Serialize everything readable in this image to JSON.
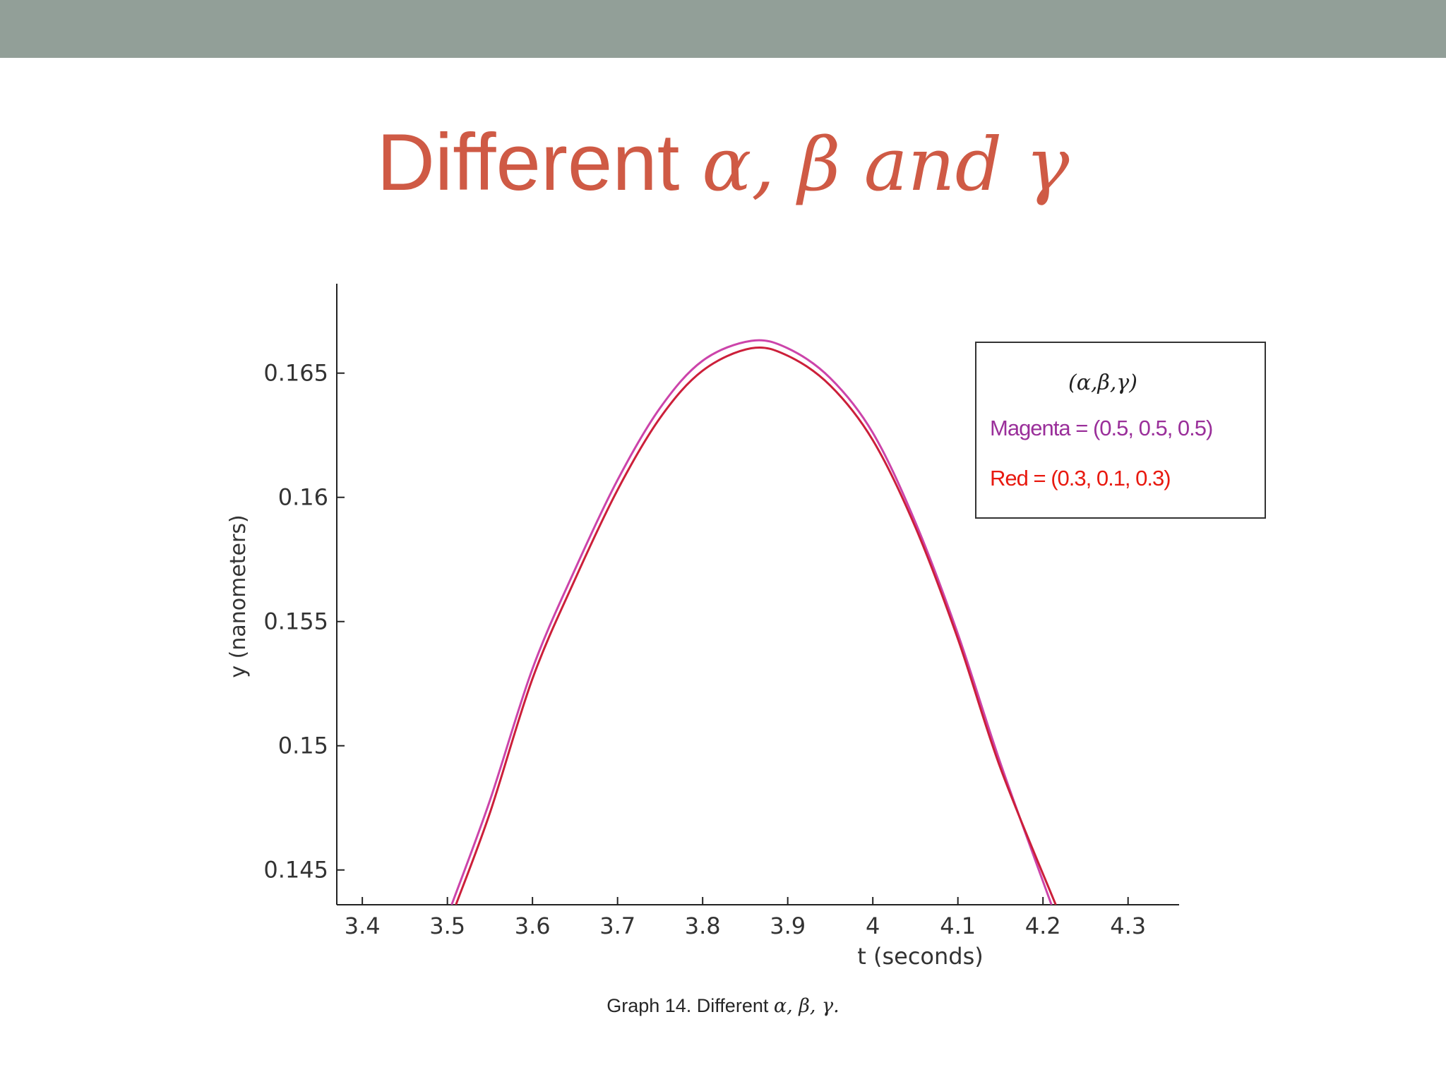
{
  "slide": {
    "title_text": "Different",
    "title_math": "α, β and γ",
    "caption_text": "Graph 14. Different",
    "caption_math": "α, β, γ."
  },
  "colors": {
    "top_bar": "#929f98",
    "title": "#cf5a45",
    "magenta_series": "#cc44aa",
    "red_series": "#cc1f3a",
    "legend_magenta_text": "#9a2f9a",
    "legend_red_text": "#e8190f"
  },
  "chart_data": {
    "type": "line",
    "title": "",
    "xlabel": "t (seconds)",
    "ylabel": "y (nanometers)",
    "xlim": [
      3.37,
      4.36
    ],
    "ylim": [
      0.1436,
      0.1686
    ],
    "x_ticks": [
      3.4,
      3.5,
      3.6,
      3.7,
      3.8,
      3.9,
      4,
      4.1,
      4.2,
      4.3
    ],
    "x_tick_labels": [
      "3.4",
      "3.5",
      "3.6",
      "3.7",
      "3.8",
      "3.9",
      "4",
      "4.1",
      "4.2",
      "4.3"
    ],
    "y_ticks": [
      0.145,
      0.15,
      0.155,
      0.16,
      0.165
    ],
    "y_tick_labels": [
      "0.145",
      "0.15",
      "0.155",
      "0.16",
      "0.165"
    ],
    "grid": false,
    "legend": {
      "placement": "top-right",
      "header": "(α,β,γ)",
      "entries": [
        "Magenta = (0.5, 0.5, 0.5)",
        "Red = (0.3, 0.1, 0.3)"
      ]
    },
    "series": [
      {
        "name": "Magenta = (0.5, 0.5, 0.5)",
        "color": "#cc44aa",
        "x": [
          3.505,
          3.55,
          3.6,
          3.65,
          3.7,
          3.75,
          3.8,
          3.857,
          3.9,
          3.95,
          4.0,
          4.05,
          4.1,
          4.15,
          4.21
        ],
        "y": [
          0.1436,
          0.1478,
          0.1531,
          0.1571,
          0.1607,
          0.1636,
          0.1655,
          0.1663,
          0.166,
          0.1648,
          0.1626,
          0.159,
          0.1545,
          0.1493,
          0.1436
        ]
      },
      {
        "name": "Red = (0.3, 0.1, 0.3)",
        "color": "#cc1f3a",
        "x": [
          3.51,
          3.55,
          3.6,
          3.65,
          3.7,
          3.75,
          3.8,
          3.857,
          3.9,
          3.95,
          4.0,
          4.05,
          4.1,
          4.15,
          4.215
        ],
        "y": [
          0.1436,
          0.1473,
          0.1527,
          0.1567,
          0.1603,
          0.1632,
          0.1651,
          0.166,
          0.1657,
          0.1645,
          0.1623,
          0.1588,
          0.1543,
          0.1491,
          0.1436
        ]
      }
    ]
  }
}
